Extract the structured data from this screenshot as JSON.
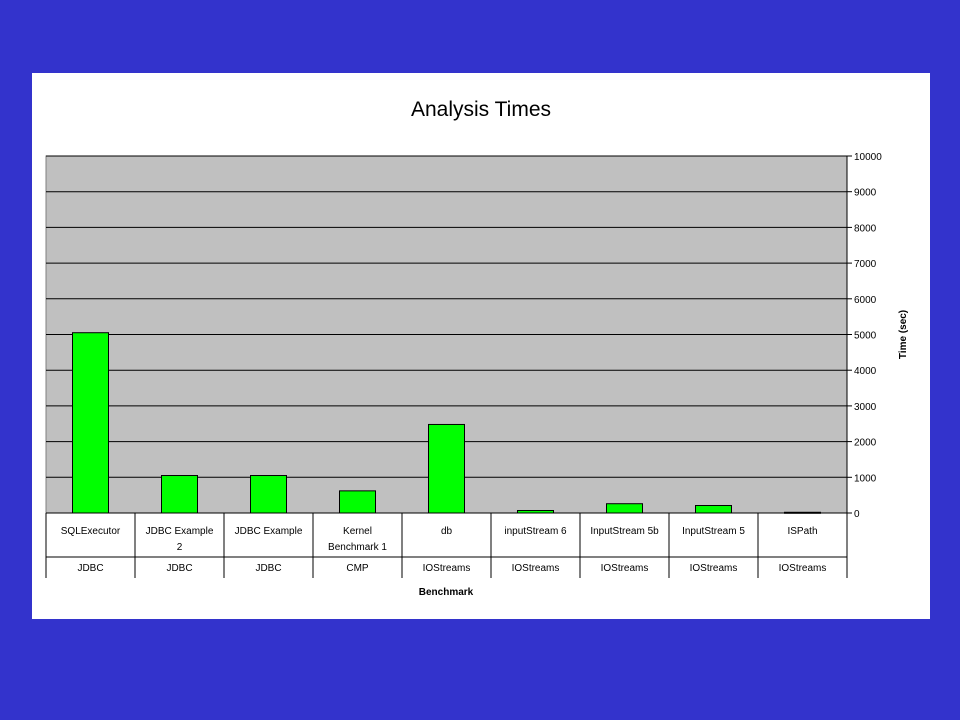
{
  "colors": {
    "background": "#3333cc",
    "panel": "#ffffff",
    "plot_area": "#c0c0c0",
    "bar_fill": "#00ff00",
    "bar_stroke": "#000000"
  },
  "chart_data": {
    "type": "bar",
    "title": "Analysis Times",
    "xlabel": "Benchmark",
    "ylabel": "Time (sec)",
    "ylim": [
      0,
      10000
    ],
    "yticks": [
      0,
      1000,
      2000,
      3000,
      4000,
      5000,
      6000,
      7000,
      8000,
      9000,
      10000
    ],
    "y_axis_side": "right",
    "grid": true,
    "legend": "none",
    "categories": [
      [
        "SQLExecutor"
      ],
      [
        "JDBC Example",
        "2"
      ],
      [
        "JDBC Example"
      ],
      [
        "Kernel",
        "Benchmark 1"
      ],
      [
        "db"
      ],
      [
        "inputStream 6"
      ],
      [
        "InputStream 5b"
      ],
      [
        "InputStream 5"
      ],
      [
        "ISPath"
      ]
    ],
    "groups": [
      "JDBC",
      "JDBC",
      "JDBC",
      "CMP",
      "IOStreams",
      "IOStreams",
      "IOStreams",
      "IOStreams",
      "IOStreams"
    ],
    "values": [
      5050,
      1050,
      1050,
      620,
      2480,
      70,
      260,
      210,
      20
    ]
  }
}
